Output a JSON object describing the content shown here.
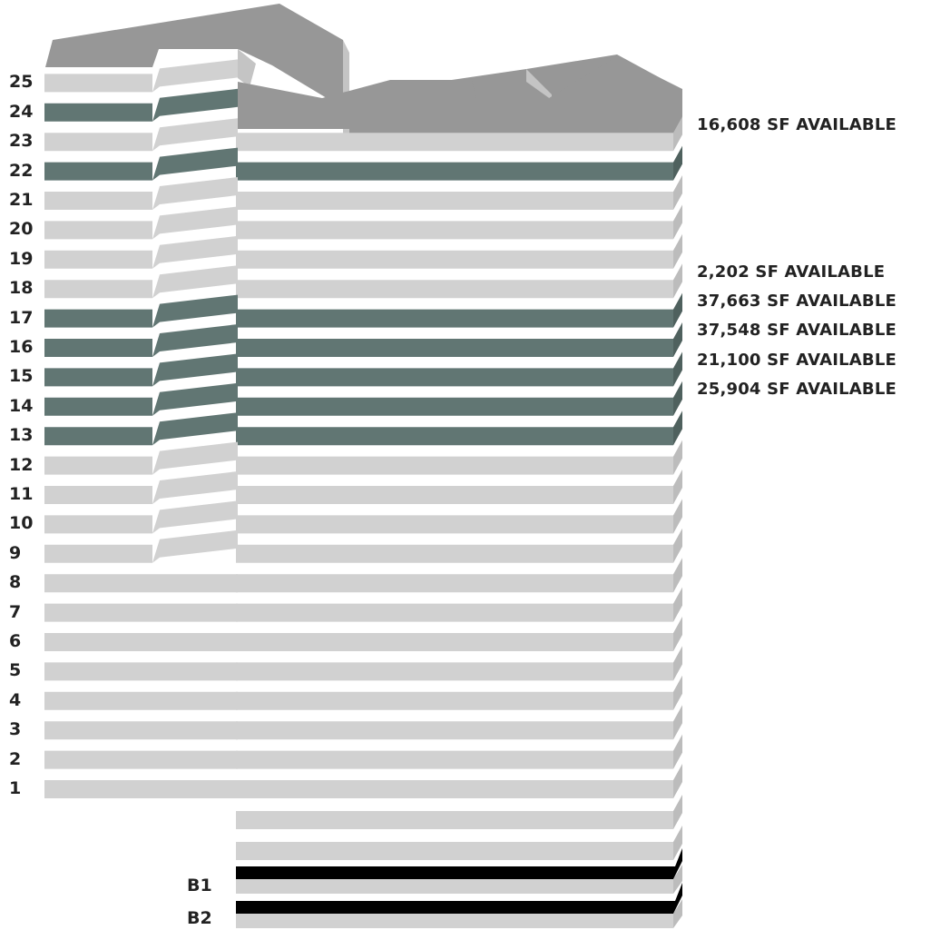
{
  "colors": {
    "floor": "#d1d1d1",
    "floor_side": "#bcbcbc",
    "available": "#617673",
    "available_side": "#4f615e",
    "basement": "#000000",
    "roof": "#979797",
    "roof_side": "#c4c4c4",
    "text": "#222222"
  },
  "floors": [
    {
      "label": "25",
      "available": false
    },
    {
      "label": "24",
      "available": true
    },
    {
      "label": "23",
      "available": false
    },
    {
      "label": "22",
      "available": true
    },
    {
      "label": "21",
      "available": false
    },
    {
      "label": "20",
      "available": false
    },
    {
      "label": "19",
      "available": false
    },
    {
      "label": "18",
      "available": false
    },
    {
      "label": "17",
      "available": true
    },
    {
      "label": "16",
      "available": true
    },
    {
      "label": "15",
      "available": true
    },
    {
      "label": "14",
      "available": true
    },
    {
      "label": "13",
      "available": true
    },
    {
      "label": "12",
      "available": false
    },
    {
      "label": "11",
      "available": false
    },
    {
      "label": "10",
      "available": false
    },
    {
      "label": "9",
      "available": false
    },
    {
      "label": "8",
      "available": false
    },
    {
      "label": "7",
      "available": false
    },
    {
      "label": "6",
      "available": false
    },
    {
      "label": "5",
      "available": false
    },
    {
      "label": "4",
      "available": false
    },
    {
      "label": "3",
      "available": false
    },
    {
      "label": "2",
      "available": false
    },
    {
      "label": "1",
      "available": false
    }
  ],
  "basements": [
    {
      "label": "B1"
    },
    {
      "label": "B2"
    }
  ],
  "availability": [
    {
      "floor": "22",
      "text": "16,608 SF AVAILABLE"
    },
    {
      "floor": "17",
      "text": "2,202 SF AVAILABLE"
    },
    {
      "floor": "16",
      "text": "37,663 SF AVAILABLE"
    },
    {
      "floor": "15",
      "text": "37,548 SF AVAILABLE"
    },
    {
      "floor": "14",
      "text": "21,100 SF AVAILABLE"
    },
    {
      "floor": "13",
      "text": "25,904 SF AVAILABLE"
    }
  ]
}
